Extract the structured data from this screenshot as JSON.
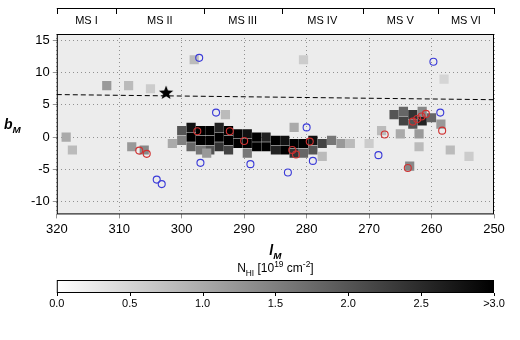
{
  "chart_data": {
    "type": "scatter",
    "x_label": [
      {
        "text": "l"
      },
      {
        "text": "M",
        "sub": true
      }
    ],
    "y_label": [
      {
        "text": "b"
      },
      {
        "text": "M",
        "sub": true
      }
    ],
    "xlim": [
      320,
      250
    ],
    "xticks": [
      320,
      310,
      300,
      290,
      280,
      270,
      260,
      250
    ],
    "ylim": [
      -12,
      16
    ],
    "yticks": [
      -10,
      -5,
      0,
      5,
      10,
      15
    ],
    "grid": true,
    "segments": [
      {
        "label": "MS I",
        "from": 320,
        "to": 310.5
      },
      {
        "label": "MS II",
        "from": 310.5,
        "to": 296.5
      },
      {
        "label": "MS III",
        "from": 296.5,
        "to": 284
      },
      {
        "label": "MS IV",
        "from": 284,
        "to": 271
      },
      {
        "label": "MS V",
        "from": 271,
        "to": 259
      },
      {
        "label": "MS VI",
        "from": 259,
        "to": 250
      }
    ],
    "cells": [
      [
        300,
        1,
        2.0
      ],
      [
        300,
        -0.5,
        1.5
      ],
      [
        298.5,
        1.5,
        2.8
      ],
      [
        298.5,
        0,
        3.0
      ],
      [
        298.5,
        -1.5,
        1.8
      ],
      [
        297,
        1,
        3.0
      ],
      [
        297,
        -0.5,
        3.0
      ],
      [
        297,
        -2,
        1.6
      ],
      [
        295.5,
        1,
        3.0
      ],
      [
        295.5,
        -0.5,
        3.0
      ],
      [
        295.5,
        -2,
        2.0
      ],
      [
        294,
        1.5,
        2.6
      ],
      [
        294,
        0,
        3.0
      ],
      [
        294,
        -1.5,
        2.4
      ],
      [
        292.5,
        1,
        3.0
      ],
      [
        292.5,
        -0.5,
        3.0
      ],
      [
        292.5,
        -2,
        2.2
      ],
      [
        291,
        0.5,
        3.0
      ],
      [
        291,
        -1,
        3.0
      ],
      [
        289.5,
        0.5,
        2.8
      ],
      [
        289.5,
        -1,
        3.0
      ],
      [
        289.5,
        -2.5,
        1.6
      ],
      [
        288,
        0,
        3.0
      ],
      [
        288,
        -1.5,
        3.0
      ],
      [
        286.5,
        0,
        2.6
      ],
      [
        286.5,
        -1.5,
        3.0
      ],
      [
        285,
        -0.5,
        3.0
      ],
      [
        285,
        -2,
        2.6
      ],
      [
        283.5,
        -0.5,
        2.8
      ],
      [
        283.5,
        -2,
        3.0
      ],
      [
        282,
        -1,
        3.0
      ],
      [
        282,
        -2.5,
        2.4
      ],
      [
        280.5,
        -1,
        3.0
      ],
      [
        280.5,
        -2.5,
        1.8
      ],
      [
        279,
        -0.5,
        2.8
      ],
      [
        279,
        -2,
        2.0
      ],
      [
        277.5,
        -1,
        2.2
      ],
      [
        276,
        -0.5,
        1.6
      ],
      [
        274.5,
        -1,
        1.2
      ],
      [
        273,
        -1,
        0.8
      ],
      [
        266,
        3.5,
        2.0
      ],
      [
        264.5,
        2.5,
        2.2
      ],
      [
        264.5,
        4,
        1.8
      ],
      [
        263,
        2,
        2.0
      ],
      [
        263,
        3.5,
        2.4
      ],
      [
        261.5,
        2.5,
        2.6
      ],
      [
        261.5,
        4,
        1.4
      ],
      [
        260,
        3,
        1.8
      ],
      [
        258.5,
        2,
        1.2
      ],
      [
        265,
        0.5,
        1.0
      ],
      [
        262,
        0.5,
        1.2
      ],
      [
        263.5,
        -4.5,
        1.4
      ],
      [
        257,
        -2,
        0.8
      ],
      [
        262,
        -1.5,
        0.8
      ],
      [
        318.5,
        0,
        1.0
      ],
      [
        317.5,
        -2,
        0.8
      ],
      [
        312,
        8,
        1.2
      ],
      [
        308.5,
        8,
        0.8
      ],
      [
        305,
        7.5,
        0.6
      ],
      [
        308,
        -1.5,
        1.2
      ],
      [
        306,
        -2,
        1.4
      ],
      [
        301.5,
        -1,
        1.0
      ],
      [
        296,
        -2.5,
        1.2
      ],
      [
        282,
        1.5,
        1.0
      ],
      [
        293,
        3.5,
        0.8
      ],
      [
        277.5,
        -3,
        0.8
      ],
      [
        270,
        -1,
        0.6
      ],
      [
        268,
        1,
        0.8
      ],
      [
        254,
        -3,
        0.6
      ],
      [
        298,
        12,
        0.8
      ],
      [
        280.5,
        12,
        0.6
      ],
      [
        258,
        9,
        0.5
      ]
    ],
    "colorbar": {
      "title": [
        {
          "text": "N"
        },
        {
          "text": "HI",
          "sub": true
        },
        {
          "text": " [10"
        },
        {
          "text": "19",
          "sup": true
        },
        {
          "text": " cm"
        },
        {
          "text": "-2",
          "sup": true
        },
        {
          "text": "]"
        }
      ],
      "range": [
        0,
        3
      ],
      "ticks": [
        {
          "value": 0,
          "label": "0.0"
        },
        0.5,
        {
          "value": 1,
          "label": "1.0"
        },
        1.5,
        {
          "value": 2,
          "label": "2.0"
        },
        2.5,
        {
          "value": 3,
          "label": ">3.0"
        }
      ]
    },
    "series": [
      {
        "type": "line",
        "line_style": "dashed",
        "color": "#000000",
        "x": [
          320,
          250
        ],
        "values": [
          6.6,
          5.8
        ]
      },
      {
        "type": "scatter",
        "marker": "circle",
        "color": "#d03030",
        "x": [
          306.8,
          305.6,
          297.5,
          292.3,
          290.0,
          282.3,
          281.7,
          279.5,
          267.5,
          263.0,
          262.3,
          261.6,
          260.9,
          263.8,
          258.3
        ],
        "values": [
          -2.1,
          -2.6,
          0.9,
          0.9,
          -0.6,
          -2.0,
          -2.7,
          -0.7,
          0.4,
          2.4,
          2.8,
          3.2,
          3.6,
          -4.8,
          1.0
        ]
      },
      {
        "type": "scatter",
        "marker": "circle",
        "color": "#3a3ad8",
        "x": [
          297.2,
          259.7,
          294.5,
          297.0,
          304.0,
          303.2,
          289.0,
          283.0,
          279.0,
          280.0,
          268.5,
          258.6
        ],
        "values": [
          12.3,
          11.7,
          3.8,
          -4.0,
          -6.6,
          -7.3,
          -4.2,
          -5.5,
          -3.7,
          1.5,
          -2.8,
          3.8
        ]
      },
      {
        "type": "scatter",
        "marker": "star",
        "color": "#000000",
        "x": [
          302.5
        ],
        "values": [
          7.0
        ]
      }
    ]
  }
}
